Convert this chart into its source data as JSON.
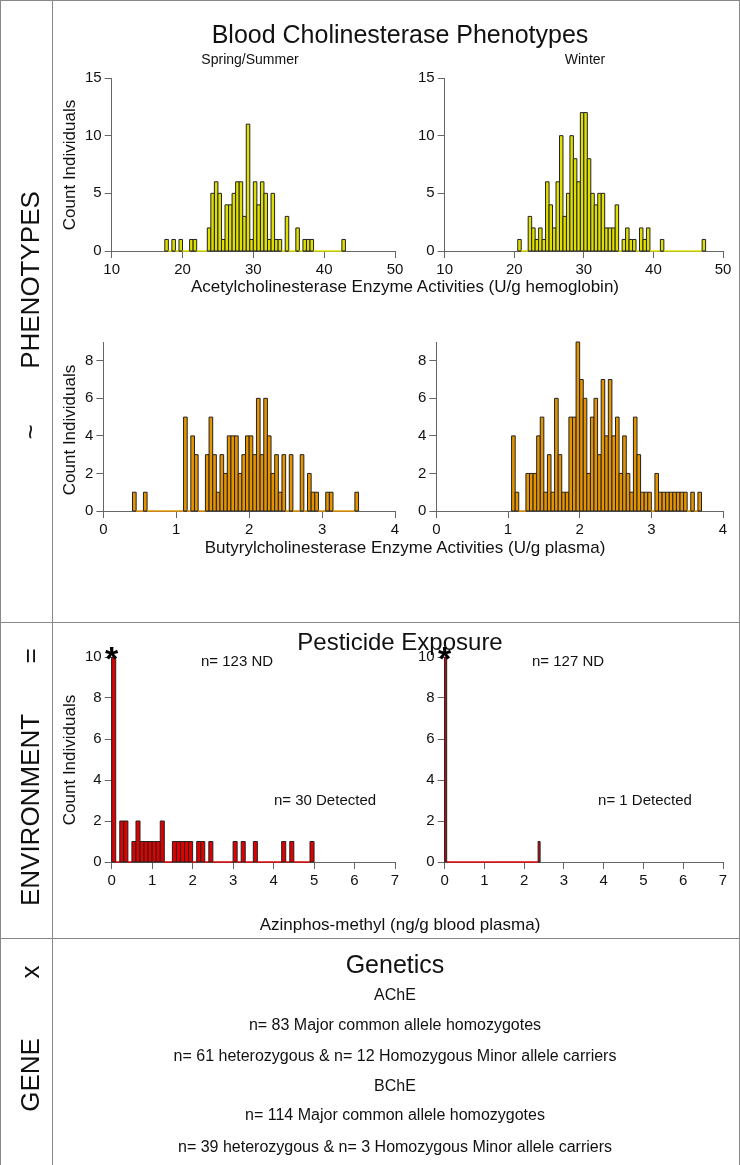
{
  "chart_data": [
    {
      "type": "histogram",
      "title": "Blood Cholinesterase Phenotypes",
      "subtitle": "Spring/Summer",
      "xlabel": "Acetylcholinesterase Enzyme Activities (U/g hemoglobin)",
      "ylabel": "Count Individuals",
      "color": "#e0e000",
      "annotations": [
        "PHENOTYPES",
        "~"
      ],
      "bins": [
        17.5,
        18,
        18.5,
        19,
        19.5,
        20,
        20.5,
        21,
        21.5,
        22,
        22.5,
        23,
        23.5,
        24,
        24.5,
        25,
        25.5,
        26,
        26.5,
        27,
        27.5,
        28,
        28.5,
        29,
        29.5,
        30,
        30.5,
        31,
        31.5,
        32,
        32.5,
        33,
        33.5,
        34,
        34.5,
        35,
        35.5,
        36,
        36.5,
        37,
        37.5,
        38,
        38.5,
        39,
        39.5,
        40,
        40.5,
        41,
        41.5,
        42,
        42.5,
        43
      ],
      "values": [
        1,
        0,
        1,
        0,
        1,
        0,
        0,
        1,
        1,
        0,
        0,
        0,
        2,
        5,
        6,
        5,
        1,
        4,
        4,
        5,
        6,
        6,
        3,
        11,
        1,
        6,
        4,
        6,
        5,
        1,
        5,
        1,
        1,
        0,
        3,
        0,
        0,
        2,
        0,
        1,
        1,
        1,
        0,
        0,
        0,
        0,
        0,
        0,
        0,
        0,
        1
      ],
      "xlim": [
        10,
        50
      ],
      "xticks": [
        10,
        20,
        30,
        40,
        50
      ],
      "ylim": [
        0,
        15
      ],
      "yticks": [
        0,
        5,
        10,
        15
      ],
      "grid": false
    },
    {
      "type": "histogram",
      "subtitle": "Winter",
      "color": "#e0e000",
      "bins": [
        20.5,
        21,
        21.5,
        22,
        22.5,
        23,
        23.5,
        24,
        24.5,
        25,
        25.5,
        26,
        26.5,
        27,
        27.5,
        28,
        28.5,
        29,
        29.5,
        30,
        30.5,
        31,
        31.5,
        32,
        32.5,
        33,
        33.5,
        34,
        34.5,
        35,
        35.5,
        36,
        36.5,
        37,
        37.5,
        38,
        38.5,
        39,
        39.5,
        40,
        40.5,
        41,
        41.5,
        42,
        42.5,
        43,
        43.5,
        44,
        44.5,
        45,
        45.5,
        46,
        46.5,
        47,
        47.5
      ],
      "values": [
        1,
        0,
        0,
        3,
        2,
        1,
        2,
        1,
        6,
        4,
        2,
        6,
        10,
        3,
        5,
        10,
        8,
        6,
        12,
        12,
        8,
        5,
        4,
        5,
        5,
        2,
        2,
        2,
        4,
        0,
        1,
        2,
        1,
        1,
        0,
        2,
        1,
        2,
        0,
        0,
        0,
        1,
        0,
        0,
        0,
        0,
        0,
        0,
        0,
        0,
        0,
        0,
        0,
        1
      ],
      "xlim": [
        10,
        50
      ],
      "xticks": [
        10,
        20,
        30,
        40,
        50
      ],
      "ylim": [
        0,
        15
      ],
      "yticks": [
        0,
        5,
        10,
        15
      ],
      "grid": false
    },
    {
      "type": "histogram",
      "xlabel": "Butyrylcholinesterase Enzyme Activities (U/g plasma)",
      "ylabel": "Count Individuals",
      "color": "#e59400",
      "bins": [
        0.4,
        0.45,
        0.5,
        0.55,
        0.6,
        0.65,
        0.7,
        0.75,
        0.8,
        0.85,
        0.9,
        0.95,
        1,
        1.05,
        1.1,
        1.15,
        1.2,
        1.25,
        1.3,
        1.35,
        1.4,
        1.45,
        1.5,
        1.55,
        1.6,
        1.65,
        1.7,
        1.75,
        1.8,
        1.85,
        1.9,
        1.95,
        2,
        2.05,
        2.1,
        2.15,
        2.2,
        2.25,
        2.3,
        2.35,
        2.4,
        2.45,
        2.5,
        2.55,
        2.6,
        2.65,
        2.7,
        2.75,
        2.8,
        2.85,
        2.9,
        2.95,
        3,
        3.05,
        3.1,
        3.15,
        3.2,
        3.25,
        3.3,
        3.35,
        3.4,
        3.45,
        3.5
      ],
      "values": [
        1,
        0,
        0,
        1,
        0,
        0,
        0,
        0,
        0,
        0,
        0,
        0,
        0,
        0,
        5,
        0,
        4,
        3,
        0,
        0,
        3,
        5,
        3,
        1,
        3,
        2,
        4,
        4,
        4,
        2,
        3,
        4,
        4,
        3,
        6,
        3,
        6,
        4,
        2,
        3,
        1,
        3,
        0,
        3,
        0,
        0,
        3,
        0,
        2,
        1,
        1,
        0,
        0,
        1,
        1,
        0,
        0,
        0,
        0,
        0,
        0,
        1
      ],
      "xlim": [
        0,
        4
      ],
      "xticks": [
        0,
        1,
        2,
        3,
        4
      ],
      "ylim": [
        0,
        9
      ],
      "yticks": [
        0,
        2,
        4,
        6,
        8
      ],
      "grid": false
    },
    {
      "type": "histogram",
      "color": "#e59400",
      "bins": [
        1.05,
        1.1,
        1.15,
        1.2,
        1.25,
        1.3,
        1.35,
        1.4,
        1.45,
        1.5,
        1.55,
        1.6,
        1.65,
        1.7,
        1.75,
        1.8,
        1.85,
        1.9,
        1.95,
        2,
        2.05,
        2.1,
        2.15,
        2.2,
        2.25,
        2.3,
        2.35,
        2.4,
        2.45,
        2.5,
        2.55,
        2.6,
        2.65,
        2.7,
        2.75,
        2.8,
        2.85,
        2.9,
        2.95,
        3,
        3.05,
        3.1,
        3.15,
        3.2,
        3.25,
        3.3,
        3.35,
        3.4,
        3.45,
        3.5,
        3.55,
        3.6,
        3.65,
        3.7
      ],
      "values": [
        4,
        1,
        0,
        0,
        2,
        2,
        2,
        4,
        5,
        1,
        3,
        1,
        6,
        3,
        1,
        1,
        5,
        5,
        9,
        7,
        6,
        2,
        5,
        6,
        3,
        7,
        4,
        7,
        4,
        5,
        2,
        4,
        2,
        1,
        5,
        3,
        1,
        1,
        1,
        0,
        2,
        1,
        1,
        1,
        1,
        1,
        1,
        1,
        1,
        0,
        1,
        0,
        1
      ],
      "xlim": [
        0,
        4
      ],
      "xticks": [
        0,
        1,
        2,
        3,
        4
      ],
      "ylim": [
        0,
        9
      ],
      "yticks": [
        0,
        2,
        4,
        6,
        8
      ],
      "grid": false
    },
    {
      "type": "histogram",
      "title": "Pesticide Exposure",
      "xlabel": "Azinphos-methyl (ng/g blood plasma)",
      "ylabel": "Count Individuals",
      "color": "#e00000",
      "annotations": [
        "ENVIRONMENT",
        "=",
        {
          "text": "*",
          "x": 0,
          "y": 10
        },
        "n= 123 ND",
        "n= 30 Detected"
      ],
      "bins": [
        0,
        0.1,
        0.2,
        0.3,
        0.4,
        0.5,
        0.6,
        0.7,
        0.8,
        0.9,
        1,
        1.1,
        1.2,
        1.3,
        1.4,
        1.5,
        1.6,
        1.7,
        1.8,
        1.9,
        2,
        2.1,
        2.2,
        2.3,
        2.4,
        2.5,
        2.6,
        2.7,
        2.8,
        2.9,
        3,
        3.1,
        3.2,
        3.3,
        3.4,
        3.5,
        3.6,
        3.7,
        3.8,
        3.9,
        4,
        4.1,
        4.2,
        4.3,
        4.4,
        4.5,
        4.6,
        4.7,
        4.8,
        4.9,
        5
      ],
      "values": [
        10,
        0,
        2,
        2,
        0,
        1,
        2,
        1,
        1,
        1,
        1,
        1,
        2,
        0,
        0,
        1,
        1,
        1,
        1,
        1,
        0,
        1,
        1,
        0,
        1,
        0,
        0,
        0,
        0,
        0,
        1,
        0,
        1,
        0,
        0,
        1,
        0,
        0,
        0,
        0,
        0,
        0,
        1,
        0,
        1,
        0,
        0,
        0,
        0,
        1
      ],
      "xlim": [
        0,
        7
      ],
      "xticks": [
        0,
        1,
        2,
        3,
        4,
        5,
        6,
        7
      ],
      "ylim": [
        0,
        10
      ],
      "yticks": [
        0,
        2,
        4,
        6,
        8,
        10
      ],
      "grid": false
    },
    {
      "type": "histogram",
      "color": "#e00000",
      "annotations": [
        {
          "text": "*",
          "x": 0,
          "y": 10
        },
        "n= 127 ND",
        "n= 1 Detected"
      ],
      "bins": [
        0,
        0.05,
        0.1,
        0.15,
        0.2,
        0.25,
        0.3,
        0.35,
        0.4,
        0.45,
        0.5,
        0.55,
        0.6,
        0.65,
        0.7,
        0.75,
        0.8,
        0.85,
        0.9,
        0.95,
        1,
        1.05,
        1.1,
        1.15,
        1.2,
        1.25,
        1.3,
        1.35,
        1.4,
        1.45,
        1.5,
        1.55,
        1.6,
        1.65,
        1.7,
        1.75,
        1.8,
        1.85,
        1.9,
        1.95,
        2,
        2.05,
        2.1,
        2.15,
        2.2,
        2.25,
        2.3,
        2.35,
        2.4
      ],
      "values": [
        10,
        0,
        0,
        0,
        0,
        0,
        0,
        0,
        0,
        0,
        0,
        0,
        0,
        0,
        0,
        0,
        0,
        0,
        0,
        0,
        0,
        0,
        0,
        0,
        0,
        0,
        0,
        0,
        0,
        0,
        0,
        0,
        0,
        0,
        0,
        0,
        0,
        0,
        0,
        0,
        0,
        0,
        0,
        0,
        0,
        0,
        0,
        1
      ],
      "xlim": [
        0,
        7
      ],
      "xticks": [
        0,
        1,
        2,
        3,
        4,
        5,
        6,
        7
      ],
      "ylim": [
        0,
        10
      ],
      "yticks": [
        0,
        2,
        4,
        6,
        8,
        10
      ],
      "grid": false
    },
    {
      "type": "other",
      "title": "Genetics",
      "annotations": [
        "GENE",
        "x",
        "AChE",
        "n= 83 Major common allele homozygotes",
        "n= 61 heterozygous & n= 12 Homozygous Minor allele carriers",
        "BChE",
        "n= 114 Major common allele homozygotes",
        "n= 39 heterozygous & n= 3 Homozygous Minor allele carriers"
      ]
    }
  ]
}
